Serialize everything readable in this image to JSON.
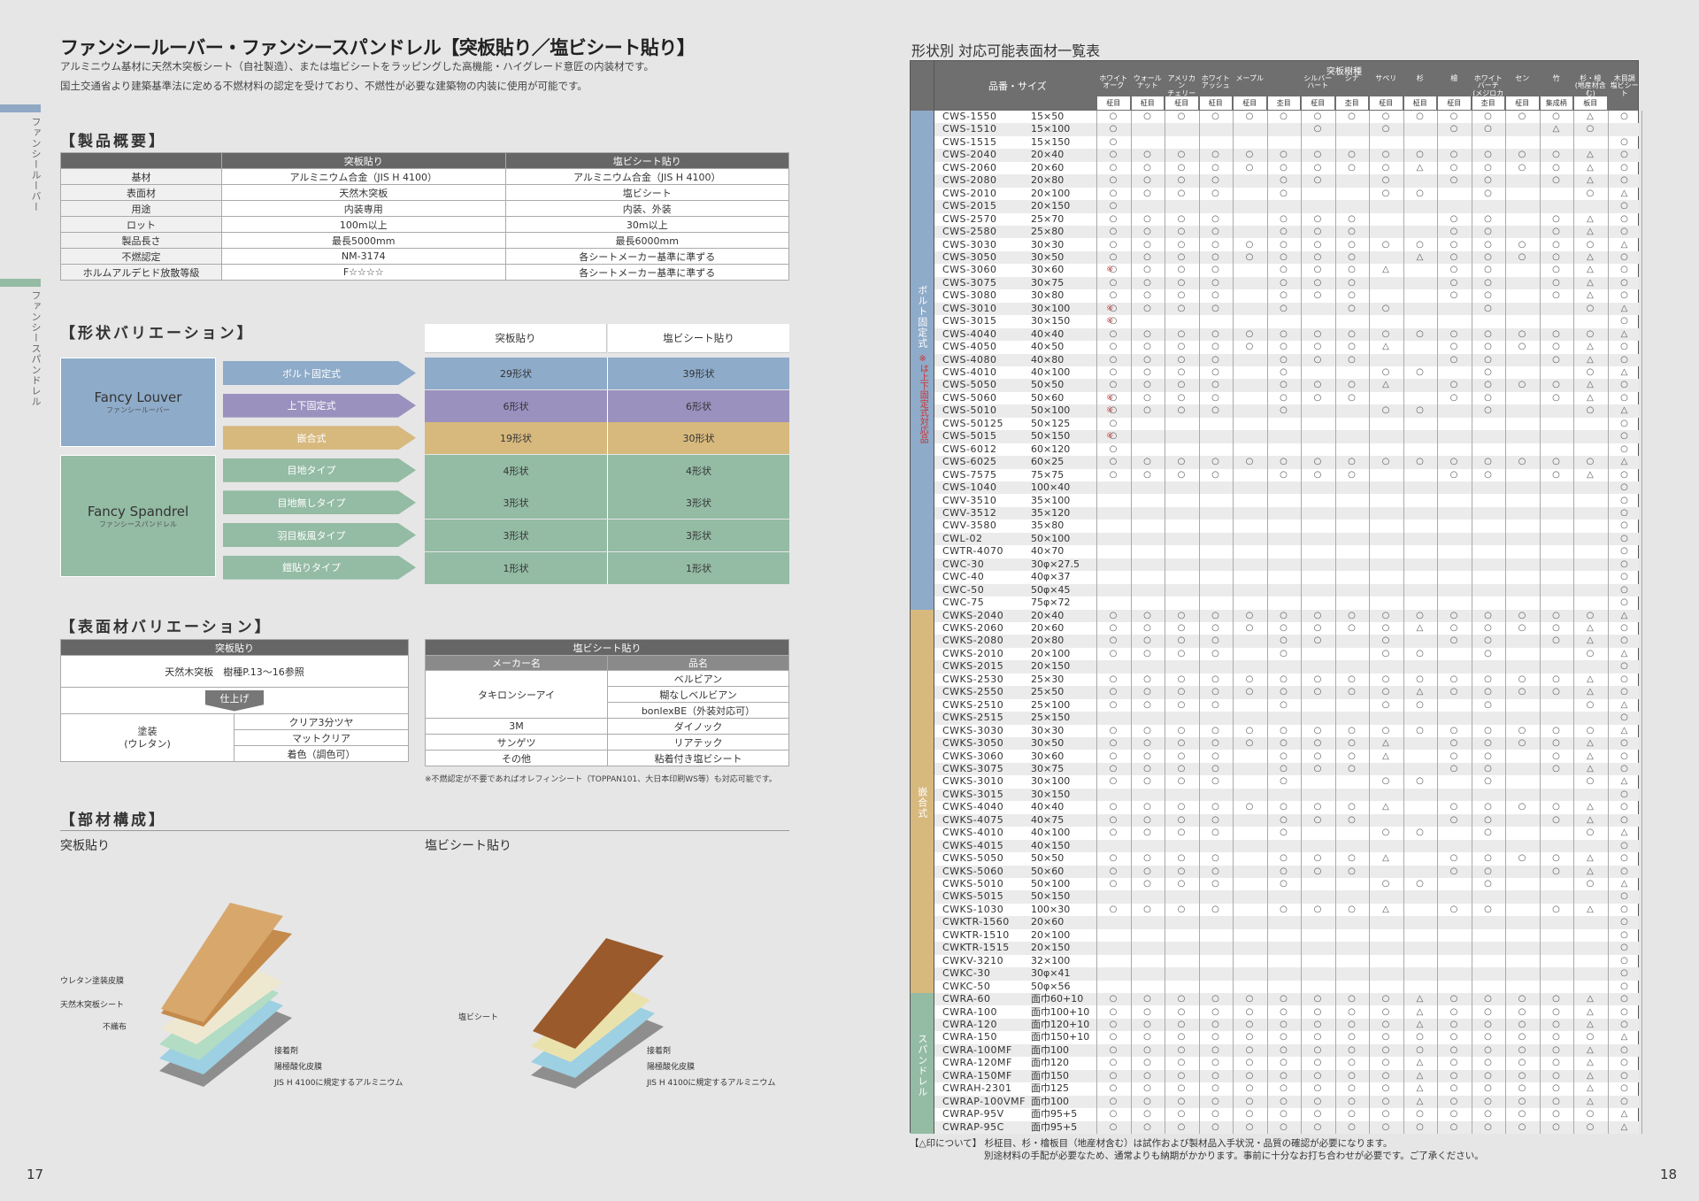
{
  "left_page": {
    "side_tabs": [
      {
        "label": "ファンシールーバー",
        "color": "#8fa8c4"
      },
      {
        "label": "ファンシースパンドレル",
        "color": "#94bba4"
      }
    ],
    "title": "ファンシールーバー・ファンシースパンドレル【突板貼り／塩ビシート貼り】",
    "lead1": "アルミニウム基材に天然木突板シート（自社製造）、または塩ビシートをラッピングした高機能・ハイグレード意匠の内装材です。",
    "lead2": "国土交通省より建築基準法に定める不燃材料の認定を受けており、不燃性が必要な建築物の内装に使用が可能です。",
    "sec_overview": "【製品概要】",
    "overview": {
      "headers": [
        "",
        "突板貼り",
        "塩ビシート貼り"
      ],
      "rows": [
        [
          "基材",
          "アルミニウム合金（JIS H 4100）",
          "アルミニウム合金（JIS H 4100）"
        ],
        [
          "表面材",
          "天然木突板",
          "塩ビシート"
        ],
        [
          "用途",
          "内装専用",
          "内装、外装"
        ],
        [
          "ロット",
          "100m以上",
          "30m以上"
        ],
        [
          "製品長さ",
          "最長5000mm",
          "最長6000mm"
        ],
        [
          "不燃認定",
          "NM-3174",
          "各シートメーカー基準に準ずる"
        ],
        [
          "ホルムアルデヒド放散等級",
          "F☆☆☆☆",
          "各シートメーカー基準に準ずる"
        ]
      ]
    },
    "sec_shape": "【形状バリエーション】",
    "shape_headers": [
      "突板貼り",
      "塩ビシート貼り"
    ],
    "louver": {
      "en": "Fancy Louver",
      "jp": "ファンシールーバー"
    },
    "spandrel": {
      "en": "Fancy Spandrel",
      "jp": "ファンシースパンドレル"
    },
    "shapes": [
      {
        "label": "ボルト固定式",
        "a": "29形状",
        "b": "39形状",
        "color": "#8eabc9"
      },
      {
        "label": "上下固定式",
        "a": "6形状",
        "b": "6形状",
        "color": "#9b91bf"
      },
      {
        "label": "嵌合式",
        "a": "19形状",
        "b": "30形状",
        "color": "#d7b97e"
      },
      {
        "label": "目地タイプ",
        "a": "4形状",
        "b": "4形状",
        "color": "#94bba4"
      },
      {
        "label": "目地無しタイプ",
        "a": "3形状",
        "b": "3形状",
        "color": "#94bba4"
      },
      {
        "label": "羽目板風タイプ",
        "a": "3形状",
        "b": "3形状",
        "color": "#94bba4"
      },
      {
        "label": "鎧貼りタイプ",
        "a": "1形状",
        "b": "1形状",
        "color": "#94bba4"
      }
    ],
    "sec_surface": "【表面材バリエーション】",
    "surface_left": {
      "header": "突板貼り",
      "row1": "天然木突板　樹種P.13～16参照",
      "finish": "仕上げ",
      "paint": "塗装\n(ウレタン)",
      "options": [
        "クリア3分ツヤ",
        "マットクリア",
        "着色（調色可）"
      ]
    },
    "surface_right": {
      "header": "塩ビシート貼り",
      "sub": [
        "メーカー名",
        "品名"
      ],
      "rows": [
        [
          "タキロンシーアイ",
          "ベルビアン"
        ],
        [
          "",
          "糊なしベルビアン"
        ],
        [
          "",
          "bonlexBE（外装対応可）"
        ],
        [
          "3M",
          "ダイノック"
        ],
        [
          "サンゲツ",
          "リアテック"
        ],
        [
          "その他",
          "粘着付き塩ビシート"
        ]
      ],
      "note": "※不燃認定が不要であればオレフィンシート（TOPPAN101、大日本印刷WS等）も対応可能です。"
    },
    "sec_parts": "【部材構成】",
    "parts_left_title": "突板貼り",
    "parts_right_title": "塩ビシート貼り",
    "parts_left_labels": [
      "ウレタン塗装皮膜",
      "天然木突板シート",
      "不織布",
      "接着剤",
      "陽極酸化皮膜",
      "JIS H 4100に規定するアルミニウム"
    ],
    "parts_right_labels": [
      "塩ビシート",
      "接着剤",
      "陽極酸化皮膜",
      "JIS H 4100に規定するアルミニウム"
    ],
    "page": "17"
  },
  "right_page": {
    "title": "形状別 対応可能表面材一覧表",
    "hdr_name": "品番・サイズ",
    "hdr_group": "突板樹種",
    "cols": [
      {
        "n": "ホワイト\nオーク",
        "s": "柾目"
      },
      {
        "n": "ウォール\nナット",
        "s": "柾目"
      },
      {
        "n": "アメリカン\nチェリー",
        "s": "柾目"
      },
      {
        "n": "ホワイト\nアッシュ",
        "s": "柾目"
      },
      {
        "n": "メープル",
        "s": "柾目"
      },
      {
        "n": "",
        "s": "杢目"
      },
      {
        "n": "シルバー\nハート",
        "s": "柾目"
      },
      {
        "n": "シナ",
        "s": "杢目"
      },
      {
        "n": "サペリ",
        "s": "柾目"
      },
      {
        "n": "杉",
        "s": "柾目"
      },
      {
        "n": "檜",
        "s": "柾目"
      },
      {
        "n": "ホワイト\nバーチ\n(メジロカバ)",
        "s": "杢目"
      },
      {
        "n": "セン",
        "s": "柾目"
      },
      {
        "n": "竹",
        "s": "集成柄"
      },
      {
        "n": "杉・檜\n(地産材含む)",
        "s": "板目"
      },
      {
        "n": "木目調\n塩ビシート",
        "s": ""
      }
    ],
    "categories": [
      {
        "label": "ボルト固定式",
        "note": "※は上下固定式対応品",
        "color": "#8eabc9",
        "start": 0,
        "count": 39
      },
      {
        "label": "嵌合式",
        "note": "",
        "color": "#d7b97e",
        "start": 39,
        "count": 30
      },
      {
        "label": "スパンドレル",
        "note": "",
        "color": "#94bba4",
        "start": 69,
        "count": 11
      }
    ],
    "rows": [
      [
        "CWS-1550",
        "15×50",
        "",
        "oooooooooooooo△o"
      ],
      [
        "CWS-1510",
        "15×100",
        "",
        "o.....o.o.oo.△o"
      ],
      [
        "CWS-1515",
        "15×150",
        "",
        "o..............o"
      ],
      [
        "CWS-2040",
        "20×40",
        "",
        "oooooooooooooo△o"
      ],
      [
        "CWS-2060",
        "20×60",
        "",
        "ooooooooo△oooo△o"
      ],
      [
        "CWS-2080",
        "20×80",
        "",
        "oooo.oo.o.oo.o△o"
      ],
      [
        "CWS-2010",
        "20×100",
        "",
        "oooo.o..oo.o..o△o"
      ],
      [
        "CWS-2015",
        "20×150",
        "",
        "o..............o"
      ],
      [
        "CWS-2570",
        "25×70",
        "",
        "oooo.ooo..oo.o△o"
      ],
      [
        "CWS-2580",
        "25×80",
        "",
        "oooo.ooo..oo.o△o"
      ],
      [
        "CWS-3030",
        "30×30",
        "",
        "ooooooooooooooo△o"
      ],
      [
        "CWS-3050",
        "30×50",
        "",
        "oooooooo.△oooo△o"
      ],
      [
        "CWS-3060",
        "30×60",
        "※",
        "oooo.ooo△.oo.o△o"
      ],
      [
        "CWS-3075",
        "30×75",
        "",
        "oooo.ooo..oo.o△o"
      ],
      [
        "CWS-3080",
        "30×80",
        "",
        "oooo.ooo..oo.o△o"
      ],
      [
        "CWS-3010",
        "30×100",
        "※",
        "oooo.o.oo..o..o△o"
      ],
      [
        "CWS-3015",
        "30×150",
        "※",
        "o..............o"
      ],
      [
        "CWS-4040",
        "40×40",
        "",
        "ooooooooooooooo△o"
      ],
      [
        "CWS-4050",
        "40×50",
        "",
        "oooooooo△.oooo△o"
      ],
      [
        "CWS-4080",
        "40×80",
        "",
        "oooo.ooo..oo.o△o"
      ],
      [
        "CWS-4010",
        "40×100",
        "",
        "oooo.o..oo.o..o△o"
      ],
      [
        "CWS-5050",
        "50×50",
        "",
        "oooo.ooo△.oooo△o"
      ],
      [
        "CWS-5060",
        "50×60",
        "※",
        "oooo.ooo..oo.o△o"
      ],
      [
        "CWS-5010",
        "50×100",
        "※",
        "oooo.o..oo.o..o△o"
      ],
      [
        "CWS-50125",
        "50×125",
        "",
        "o..............o"
      ],
      [
        "CWS-5015",
        "50×150",
        "※",
        "o..............o"
      ],
      [
        "CWS-6012",
        "60×120",
        "",
        "o..............o"
      ],
      [
        "CWS-6025",
        "60×25",
        "",
        "ooooooooooooooo△o"
      ],
      [
        "CWS-7575",
        "75×75",
        "",
        "oooo.ooo..oo.o△o"
      ],
      [
        "CWS-1040",
        "100×40",
        "",
        "...............o"
      ],
      [
        "CWV-3510",
        "35×100",
        "",
        "...............o"
      ],
      [
        "CWV-3512",
        "35×120",
        "",
        "...............o"
      ],
      [
        "CWV-3580",
        "35×80",
        "",
        "...............o"
      ],
      [
        "CWL-02",
        "50×100",
        "",
        "...............o"
      ],
      [
        "CWTR-4070",
        "40×70",
        "",
        "...............o"
      ],
      [
        "CWC-30",
        "30φ×27.5",
        "",
        "...............o"
      ],
      [
        "CWC-40",
        "40φ×37",
        "",
        "...............o"
      ],
      [
        "CWC-50",
        "50φ×45",
        "",
        "...............o"
      ],
      [
        "CWC-75",
        "75φ×72",
        "",
        "...............o"
      ],
      [
        "CWKS-2040",
        "20×40",
        "",
        "ooooooooooooooo△o"
      ],
      [
        "CWKS-2060",
        "20×60",
        "",
        "ooooooooo△oooo△o"
      ],
      [
        "CWKS-2080",
        "20×80",
        "",
        "oooo.oo.o.oo.o△o"
      ],
      [
        "CWKS-2010",
        "20×100",
        "",
        "oooo.o..oo.o..o△o"
      ],
      [
        "CWKS-2015",
        "20×150",
        "",
        "...............o"
      ],
      [
        "CWKS-2530",
        "25×30",
        "",
        "oooooooooooooo△o"
      ],
      [
        "CWKS-2550",
        "25×50",
        "",
        "ooooooooo△oooo△o"
      ],
      [
        "CWKS-2510",
        "25×100",
        "",
        "oooo.o..oo.o..o△o"
      ],
      [
        "CWKS-2515",
        "25×150",
        "",
        "...............o"
      ],
      [
        "CWKS-3030",
        "30×30",
        "",
        "ooooooooooooooo△o"
      ],
      [
        "CWKS-3050",
        "30×50",
        "",
        "oooooooo△.oooo△o"
      ],
      [
        "CWKS-3060",
        "30×60",
        "",
        "oooo.ooo△.oo.o△o"
      ],
      [
        "CWKS-3075",
        "30×75",
        "",
        "oooo.ooo..oo.o△o"
      ],
      [
        "CWKS-3010",
        "30×100",
        "",
        "oooo.o..oo.o..o△o"
      ],
      [
        "CWKS-3015",
        "30×150",
        "",
        "...............o"
      ],
      [
        "CWKS-4040",
        "40×40",
        "",
        "oooooooo△.oooo△o"
      ],
      [
        "CWKS-4075",
        "40×75",
        "",
        "oooo.ooo..oo.o△o"
      ],
      [
        "CWKS-4010",
        "40×100",
        "",
        "oooo.o..oo.o..o△o"
      ],
      [
        "CWKS-4015",
        "40×150",
        "",
        "...............o"
      ],
      [
        "CWKS-5050",
        "50×50",
        "",
        "oooo.ooo△.oooo△o"
      ],
      [
        "CWKS-5060",
        "50×60",
        "",
        "oooo.ooo..oo.o△o"
      ],
      [
        "CWKS-5010",
        "50×100",
        "",
        "oooo.o..oo.o..o△o"
      ],
      [
        "CWKS-5015",
        "50×150",
        "",
        "...............o"
      ],
      [
        "CWKS-1030",
        "100×30",
        "",
        "oooo.ooo△.oo.o△o"
      ],
      [
        "CWKTR-1560",
        "20×60",
        "",
        "...............o"
      ],
      [
        "CWKTR-1510",
        "20×100",
        "",
        "...............o"
      ],
      [
        "CWKTR-1515",
        "20×150",
        "",
        "...............o"
      ],
      [
        "CWKV-3210",
        "32×100",
        "",
        "...............o"
      ],
      [
        "CWKC-30",
        "30φ×41",
        "",
        "...............o"
      ],
      [
        "CWKC-50",
        "50φ×56",
        "",
        "...............o"
      ],
      [
        "CWRA-60",
        "面巾60+10",
        "",
        "ooooooooo△oooo△o"
      ],
      [
        "CWRA-100",
        "面巾100+10",
        "",
        "ooooooooo△oooo△o"
      ],
      [
        "CWRA-120",
        "面巾120+10",
        "",
        "ooooooooo△oooo△o"
      ],
      [
        "CWRA-150",
        "面巾150+10",
        "",
        "ooooooooooooooo△o"
      ],
      [
        "CWRA-100MF",
        "面巾100",
        "",
        "oooooooooooooo△o"
      ],
      [
        "CWRA-120MF",
        "面巾120",
        "",
        "ooooooooo△oooo△o"
      ],
      [
        "CWRA-150MF",
        "面巾150",
        "",
        "ooooooooo△oooo△o"
      ],
      [
        "CWRAH-2301",
        "面巾125",
        "",
        "ooooooooo△oooo△o"
      ],
      [
        "CWRAP-100VMF",
        "面巾100",
        "",
        "ooooooooo△oooo△o"
      ],
      [
        "CWRAP-95V",
        "面巾95+5",
        "",
        "ooooooooooooooo△o"
      ],
      [
        "CWRAP-95C",
        "面巾95+5",
        "",
        "ooooooooooooooo△o"
      ]
    ],
    "foot1": "【△印について】 杉柾目、杉・檜板目（地産材含む）は試作および製材品入手状況・品質の確認が必要になります。",
    "foot2": "別途材料の手配が必要なため、通常よりも納期がかかります。事前に十分なお打ち合わせが必要です。ご了承ください。",
    "page": "18"
  }
}
